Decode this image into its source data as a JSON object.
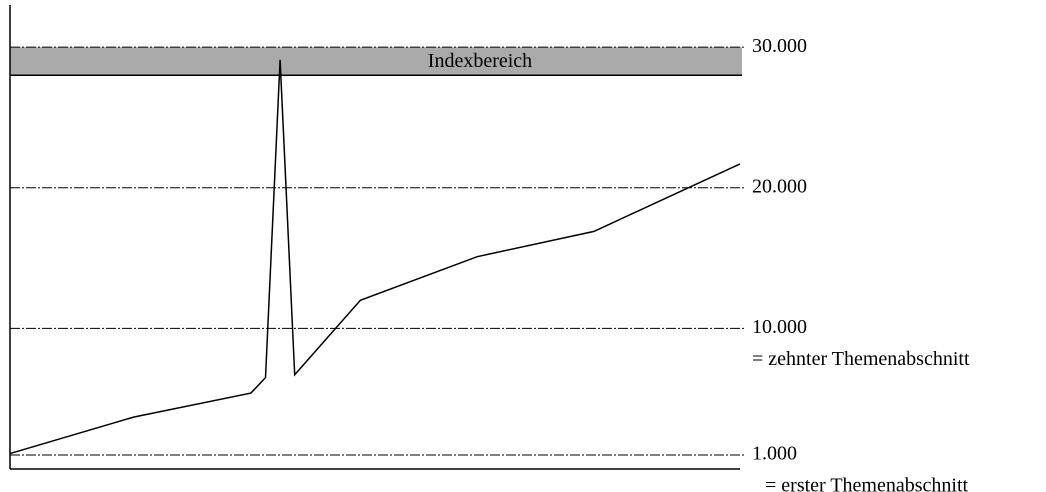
{
  "chart_data": {
    "type": "line",
    "x": [
      0,
      17,
      33,
      35,
      37,
      39,
      48,
      64,
      80,
      100
    ],
    "values": [
      1100,
      3700,
      5400,
      6500,
      29100,
      6700,
      12000,
      15100,
      16900,
      21700
    ],
    "color": "#000000",
    "xlim": [
      0,
      100
    ],
    "ylim": [
      0,
      33000
    ],
    "yticks": [
      {
        "value": 1000,
        "label": "1.000"
      },
      {
        "value": 10000,
        "label": "10.000"
      },
      {
        "value": 20000,
        "label": "20.000"
      },
      {
        "value": 30000,
        "label": "30.000"
      }
    ],
    "grid": true,
    "band": {
      "label": "Indexbereich",
      "from": 28000,
      "to": 30000,
      "color": "#aaaaaa"
    },
    "annotations": [
      {
        "text": "= zehnter Themenabschnitt",
        "y": 10000
      },
      {
        "text": "= erster Themenabschnitt",
        "y": 1000
      }
    ]
  }
}
